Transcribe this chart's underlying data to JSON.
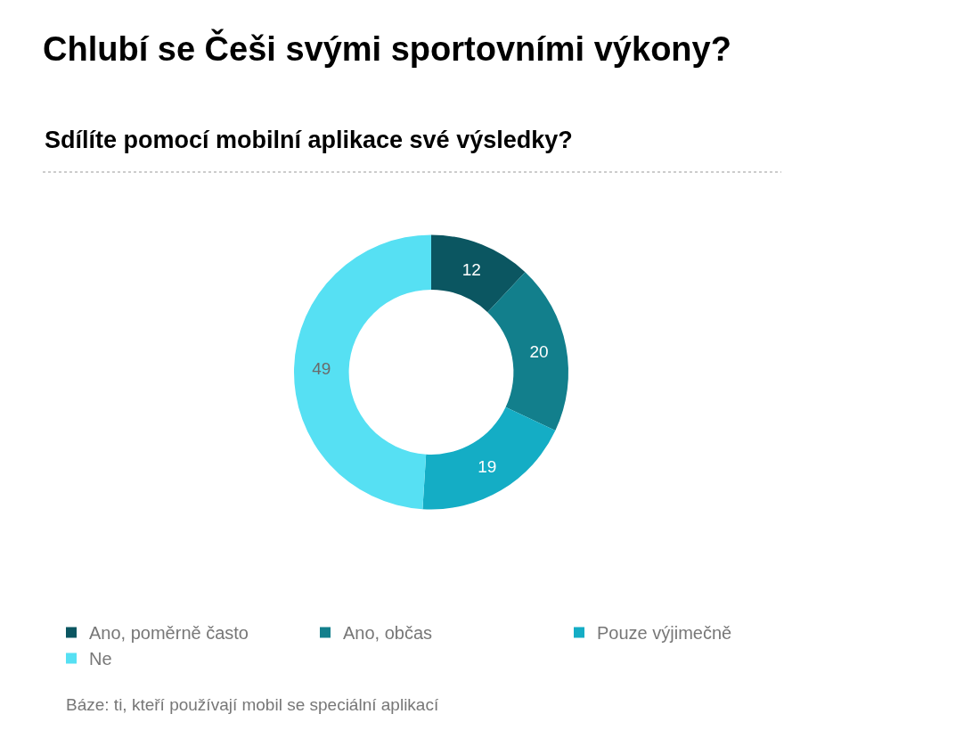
{
  "chart_data": {
    "type": "donut",
    "title": "Chlubí se Češi svými sportovními výkony?",
    "subtitle": "Sdílíte pomocí mobilní aplikace své výsledky?",
    "categories": [
      "Ano, poměrně často",
      "Ano, občas",
      "Pouze výjimečně",
      "Ne"
    ],
    "values": [
      12,
      20,
      19,
      49
    ],
    "colors": [
      "#0b5661",
      "#127f8c",
      "#14adc5",
      "#56e0f3"
    ],
    "data_labels": true,
    "legend": "bottom",
    "annotations": [
      "Báze: ti, kteří používají mobil se speciální aplikací"
    ]
  }
}
